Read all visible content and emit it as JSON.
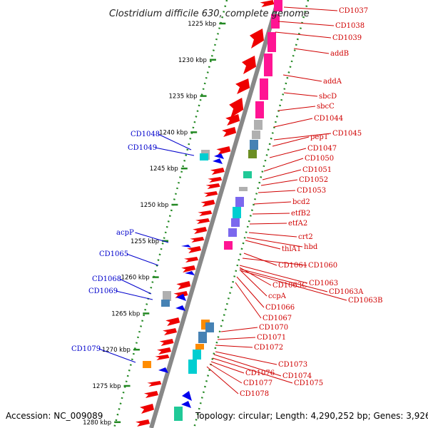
{
  "title": "Clostridium difficile 630, complete genome",
  "footer": {
    "accession": "Accession: NC_009089",
    "topology": "Topology: circular; Length: 4,290,252 bp; Genes: 3,926"
  },
  "ticks": [
    {
      "label": "1225 kbp"
    },
    {
      "label": "1230 kbp"
    },
    {
      "label": "1235 kbp"
    },
    {
      "label": "1240 kbp"
    },
    {
      "label": "1245 kbp"
    },
    {
      "label": "1250 kbp"
    },
    {
      "label": "1255 kbp"
    },
    {
      "label": "1260 kbp"
    },
    {
      "label": "1265 kbp"
    },
    {
      "label": "1270 kbp"
    },
    {
      "label": "1275 kbp"
    },
    {
      "label": "1280 kbp"
    }
  ],
  "genes_right": [
    "CD1037",
    "CD1038",
    "CD1039",
    "addB",
    "addA",
    "sbcD",
    "sbcC",
    "CD1044",
    "CD1045",
    "pepT",
    "CD1047",
    "CD1050",
    "CD1051",
    "CD1052",
    "CD1053",
    "bcd2",
    "etfB2",
    "etfA2",
    "crt2",
    "hbd",
    "thlA1",
    "CD1061",
    "CD1060",
    "CD1063",
    "CD1063C",
    "CD1063A",
    "ccpA",
    "CD1063B",
    "CD1066",
    "CD1067",
    "CD1070",
    "CD1071",
    "CD1072",
    "CD1073",
    "CD1074",
    "CD1076",
    "CD1075",
    "CD1077",
    "CD1078"
  ],
  "genes_left": [
    "CD1048",
    "CD1049",
    "acpP",
    "CD1065",
    "CD1068",
    "CD1069",
    "CD1079"
  ],
  "colors": {
    "forward": "#ee0000",
    "reverse": "#0000ee",
    "backbone": "#888888",
    "tick_track": "#228822",
    "label_right": "#d00000",
    "label_left": "#0000cc",
    "cog_pink": "#ff1493",
    "cog_blue": "#4682b4",
    "cog_cyan": "#00ced1",
    "cog_purple": "#7b68ee",
    "cog_orange": "#ff8c00",
    "cog_green": "#6b8e23",
    "cog_teal": "#20c997",
    "cog_grey": "#b0b0b0"
  }
}
